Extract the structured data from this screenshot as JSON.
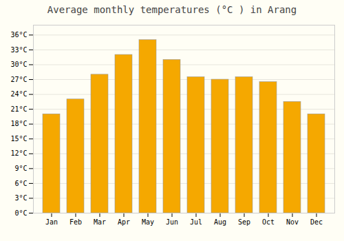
{
  "chart_data": {
    "type": "bar",
    "title": "Average monthly temperatures (°C ) in Arang",
    "categories": [
      "Jan",
      "Feb",
      "Mar",
      "Apr",
      "May",
      "Jun",
      "Jul",
      "Aug",
      "Sep",
      "Oct",
      "Nov",
      "Dec"
    ],
    "values": [
      20,
      23,
      28,
      32,
      35,
      31,
      27.5,
      27,
      27.5,
      26.5,
      22.5,
      20
    ],
    "color": "#F5A800",
    "ylim": [
      0,
      38
    ],
    "yticks": [
      {
        "value": 0,
        "label": "0°C"
      },
      {
        "value": 3,
        "label": "3°C"
      },
      {
        "value": 6,
        "label": "6°C"
      },
      {
        "value": 9,
        "label": "9°C"
      },
      {
        "value": 12,
        "label": "12°C"
      },
      {
        "value": 15,
        "label": "15°C"
      },
      {
        "value": 18,
        "label": "18°C"
      },
      {
        "value": 21,
        "label": "21°C"
      },
      {
        "value": 24,
        "label": "24°C"
      },
      {
        "value": 27,
        "label": "27°C"
      },
      {
        "value": 30,
        "label": "30°C"
      },
      {
        "value": 33,
        "label": "33°C"
      },
      {
        "value": 36,
        "label": "36°C"
      }
    ],
    "grid": true
  }
}
